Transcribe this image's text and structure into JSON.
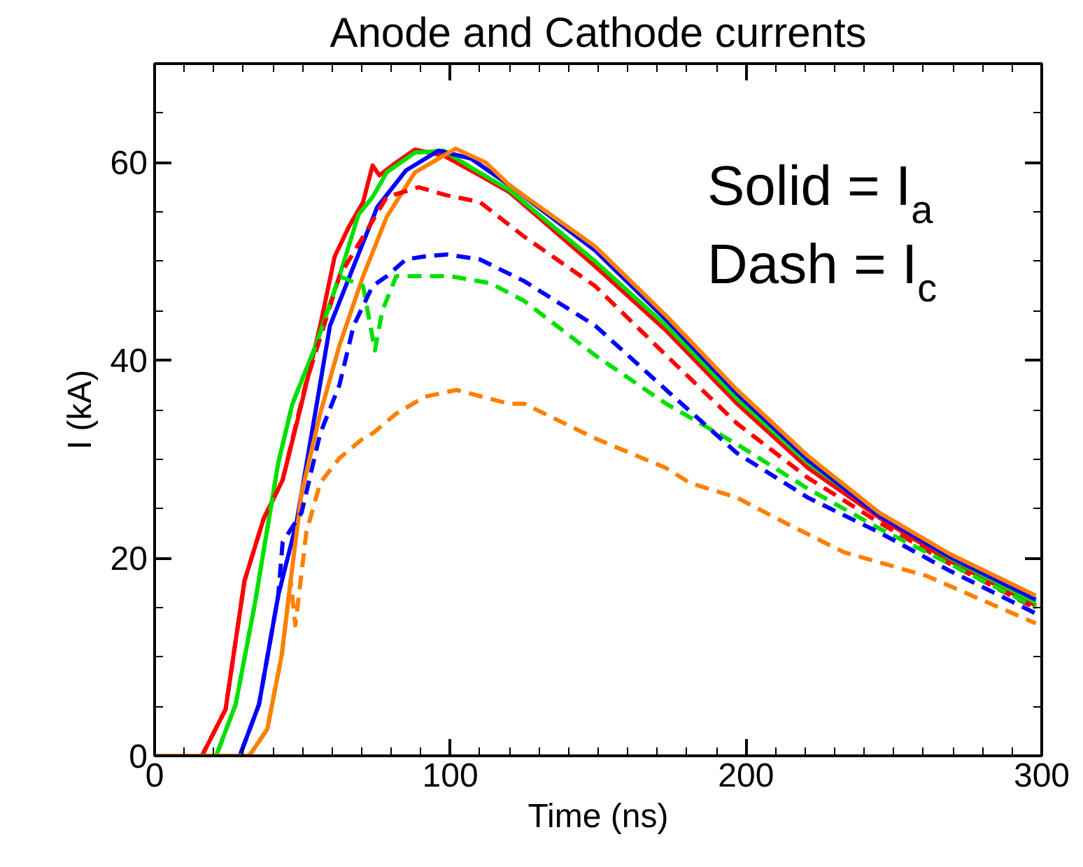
{
  "chart_data": {
    "type": "line",
    "title": "Anode and Cathode currents",
    "xlabel": "Time (ns)",
    "ylabel": "I (kA)",
    "xlim": [
      0,
      300
    ],
    "ylim": [
      0,
      70
    ],
    "xticks": [
      0,
      100,
      200,
      300
    ],
    "yticks": [
      0,
      20,
      40,
      60
    ],
    "grid": false,
    "annotations": [
      "Solid = I$_{a}$",
      "Dash = I$_{c}$"
    ],
    "series": [
      {
        "color": "#ff0000",
        "line_style": "solid",
        "x": [
          0,
          16,
          24,
          30.4,
          36.9,
          43.3,
          49.7,
          56,
          60.9,
          65.7,
          70.5,
          73.7,
          76,
          81.7,
          88,
          97.8,
          107,
          120,
          149,
          173,
          197,
          221,
          245,
          269,
          298
        ],
        "values": [
          0,
          0,
          4.7,
          17.7,
          24,
          27.9,
          35.6,
          43.5,
          50.5,
          53.5,
          56,
          59.7,
          58.7,
          60,
          61.3,
          60.7,
          59.2,
          57,
          49.5,
          43,
          35.6,
          29.1,
          24.1,
          19.7,
          15.2
        ]
      },
      {
        "color": "#00e000",
        "line_style": "solid",
        "x": [
          0,
          20.8,
          27.4,
          33.8,
          41.8,
          46.6,
          54.5,
          62.5,
          68.9,
          73.7,
          78.5,
          88,
          97.8,
          107,
          120,
          149,
          173,
          197,
          221,
          245,
          269,
          298
        ],
        "values": [
          0,
          0,
          5.2,
          15.2,
          29.6,
          35.6,
          41.5,
          48.5,
          54.7,
          56.5,
          59,
          61,
          61.2,
          59.5,
          57.2,
          50,
          43.5,
          36.1,
          29.6,
          24.5,
          20,
          15.5
        ]
      },
      {
        "color": "#0000ff",
        "line_style": "solid",
        "x": [
          0,
          28.8,
          35.3,
          41.8,
          48,
          54.5,
          59.3,
          67.3,
          75.3,
          85,
          96,
          107,
          120,
          149,
          173,
          197,
          221,
          245,
          269,
          298
        ],
        "values": [
          0,
          0,
          5.2,
          16.2,
          23.6,
          35,
          43.5,
          49.5,
          55.5,
          59.2,
          61.2,
          60.4,
          57.7,
          51.1,
          44.1,
          36.6,
          29.9,
          24.3,
          20.1,
          15.8
        ]
      },
      {
        "color": "#ff8000",
        "line_style": "solid",
        "x": [
          0,
          32,
          38.1,
          43,
          46,
          49.7,
          56,
          62.5,
          70.5,
          78.5,
          88,
          101.8,
          112,
          120,
          149,
          173,
          197,
          221,
          245,
          269,
          298
        ],
        "values": [
          0,
          0,
          2.7,
          10.2,
          17.7,
          26.6,
          34.6,
          41.5,
          48.5,
          54.5,
          59,
          61.4,
          60,
          57.7,
          51.5,
          44.5,
          37,
          30.3,
          24.6,
          20.4,
          16.2
        ]
      },
      {
        "color": "#ff0000",
        "line_style": "dashed",
        "x": [
          0,
          16,
          24,
          30.4,
          36.9,
          43.3,
          51,
          62.5,
          70.5,
          78.5,
          89.3,
          98.6,
          110,
          125,
          149,
          173,
          197,
          221,
          245,
          269,
          298
        ],
        "values": [
          0,
          0,
          4.7,
          17.7,
          24,
          27.9,
          37.5,
          48.5,
          52.5,
          56.5,
          57.5,
          56.7,
          56,
          52.5,
          47.5,
          40.5,
          33.6,
          28.1,
          23.6,
          19.4,
          14.9
        ]
      },
      {
        "color": "#00e000",
        "line_style": "dashed",
        "x": [
          0,
          20.8,
          27.4,
          33.8,
          41.8,
          46.6,
          54.5,
          62.5,
          70.5,
          74.5,
          77,
          81.7,
          91.3,
          100,
          113.5,
          125,
          149,
          173,
          197,
          221,
          245,
          269,
          298
        ],
        "values": [
          0,
          0,
          5.2,
          15.2,
          29.6,
          35.6,
          41.5,
          48.5,
          47.5,
          41,
          45,
          48.5,
          48.5,
          48.5,
          47.8,
          46,
          40.5,
          35.6,
          31.5,
          27,
          23,
          19.4,
          15
        ]
      },
      {
        "color": "#0000ff",
        "line_style": "dashed",
        "x": [
          0,
          28.8,
          35.3,
          41.8,
          43.3,
          49.7,
          56,
          62.5,
          67.3,
          73.7,
          78.5,
          85,
          91.3,
          99,
          110,
          125,
          149,
          173,
          197,
          221,
          245,
          269,
          298
        ],
        "values": [
          0,
          0,
          5.2,
          16.2,
          21.6,
          24.6,
          32.6,
          37.5,
          43.5,
          47.5,
          48.5,
          50.2,
          50.5,
          50.7,
          50.2,
          48,
          43.5,
          37,
          30.6,
          26.1,
          22.6,
          18.7,
          14.4
        ]
      },
      {
        "color": "#ff8000",
        "line_style": "dashed",
        "x": [
          0,
          32,
          38.1,
          43,
          46,
          47.6,
          51.3,
          56,
          62.5,
          70.5,
          73.7,
          81.7,
          91.3,
          102,
          120,
          125,
          149,
          173,
          181,
          197,
          213,
          233,
          261,
          298
        ],
        "values": [
          0,
          0,
          2.7,
          10.2,
          17.7,
          13.2,
          22.6,
          27.6,
          30.1,
          32.1,
          32.6,
          34.6,
          36.3,
          37,
          35.6,
          35.6,
          32.1,
          29.1,
          27.6,
          26.1,
          23.6,
          20.6,
          18.2,
          13.4
        ]
      }
    ]
  }
}
